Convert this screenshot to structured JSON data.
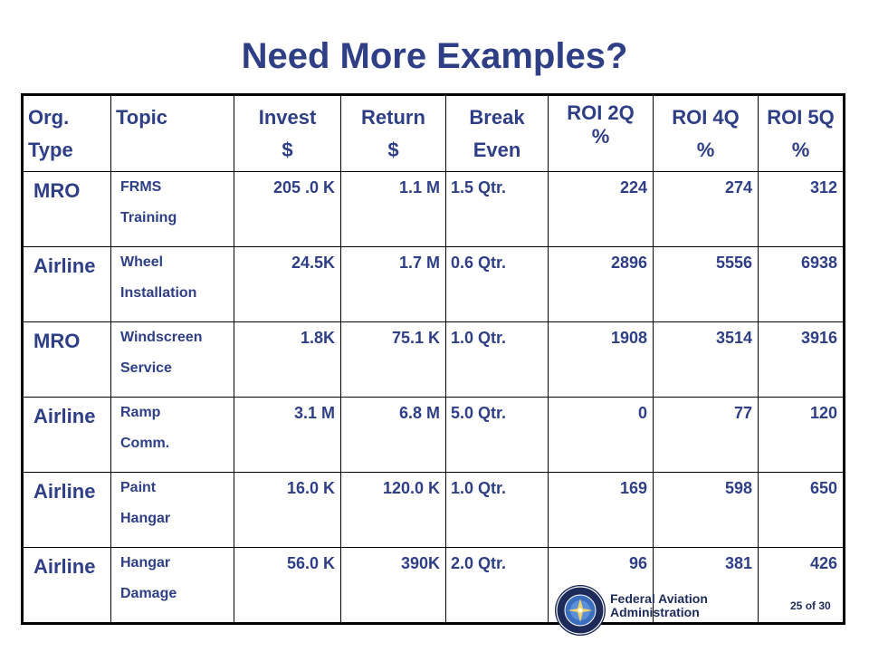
{
  "slide": {
    "title": "Need More Examples?"
  },
  "table": {
    "headers": {
      "org": [
        "Org.",
        "Type"
      ],
      "topic": "Topic",
      "invest": [
        "Invest",
        "$"
      ],
      "return": [
        "Return",
        "$"
      ],
      "break_even": [
        "Break",
        "Even"
      ],
      "roi_2q": [
        "ROI 2Q",
        "%"
      ],
      "roi_4q": [
        "ROI 4Q",
        "%"
      ],
      "roi_5q": [
        "ROI 5Q",
        "%"
      ]
    },
    "rows": [
      {
        "org": "MRO",
        "topic": [
          "FRMS",
          "Training"
        ],
        "invest": "205 .0 K",
        "return": "1.1 M",
        "break_even": "1.5 Qtr.",
        "roi_2q": "224",
        "roi_4q": "274",
        "roi_5q": "312"
      },
      {
        "org": "Airline",
        "topic": [
          "Wheel",
          "Installation"
        ],
        "invest": "24.5K",
        "return": "1.7 M",
        "break_even": "0.6 Qtr.",
        "roi_2q": "2896",
        "roi_4q": "5556",
        "roi_5q": "6938"
      },
      {
        "org": "MRO",
        "topic": [
          "Windscreen",
          "Service"
        ],
        "invest": "1.8K",
        "return": "75.1 K",
        "break_even": "1.0 Qtr.",
        "roi_2q": "1908",
        "roi_4q": "3514",
        "roi_5q": "3916"
      },
      {
        "org": "Airline",
        "topic": [
          "Ramp",
          "Comm."
        ],
        "invest": "3.1 M",
        "return": "6.8 M",
        "break_even": "5.0 Qtr.",
        "roi_2q": "0",
        "roi_4q": "77",
        "roi_5q": "120"
      },
      {
        "org": "Airline",
        "topic": [
          "Paint",
          "Hangar"
        ],
        "invest": "16.0 K",
        "return": "120.0 K",
        "break_even": "1.0 Qtr.",
        "roi_2q": "169",
        "roi_4q": "598",
        "roi_5q": "650"
      },
      {
        "org": "Airline",
        "topic": [
          "Hangar",
          "Damage"
        ],
        "invest": "56.0 K",
        "return": "390K",
        "break_even": "2.0 Qtr.",
        "roi_2q": "96",
        "roi_4q": "381",
        "roi_5q": "426"
      }
    ]
  },
  "footer": {
    "agency_line1": "Federal Aviation",
    "agency_line2": "Administration",
    "page_current": "25",
    "page_of": "of",
    "page_total": "30"
  },
  "colors": {
    "text_blue": "#2e3f86",
    "footer_navy": "#1d2b5a"
  }
}
